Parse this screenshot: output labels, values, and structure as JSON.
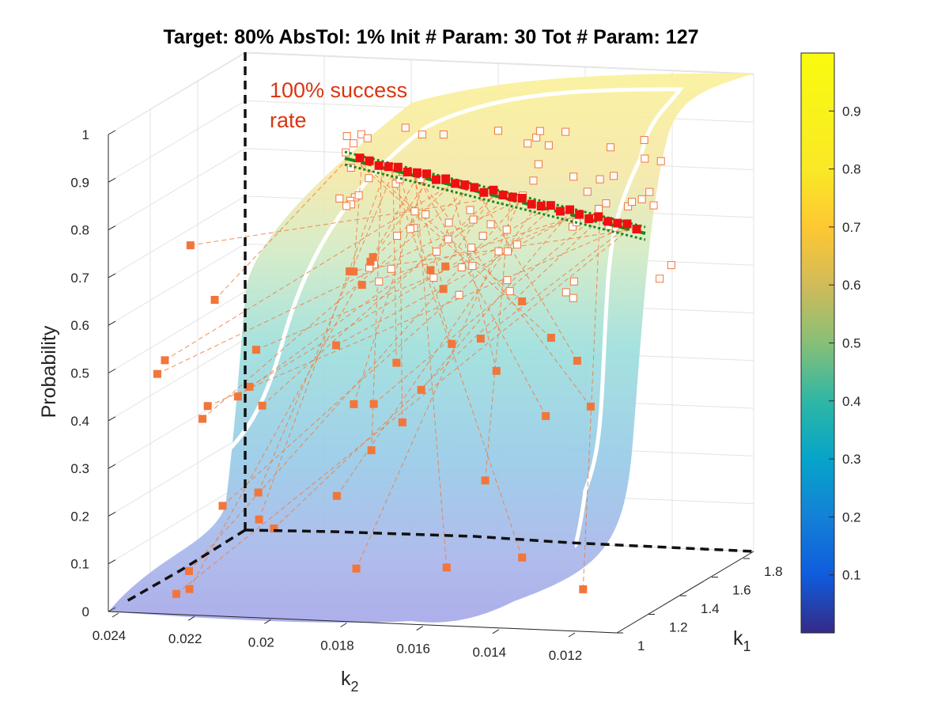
{
  "chart_data": {
    "type": "surface3d",
    "title": "Target: 80%  AbsTol: 1%  Init # Param: 30  Tot # Param: 127",
    "xlabel": "k",
    "xlabel_sub": "2",
    "ylabel": "k",
    "ylabel_sub": "1",
    "zlabel": "Probability",
    "x_ticks": [
      "0.024",
      "0.022",
      "0.02",
      "0.018",
      "0.016",
      "0.014",
      "0.012"
    ],
    "y_ticks": [
      "1",
      "1.2",
      "1.4",
      "1.6",
      "1.8"
    ],
    "z_ticks": [
      "0",
      "0.1",
      "0.2",
      "0.3",
      "0.4",
      "0.5",
      "0.6",
      "0.7",
      "0.8",
      "0.9",
      "1"
    ],
    "colorbar_ticks": [
      "0.1",
      "0.2",
      "0.3",
      "0.4",
      "0.5",
      "0.6",
      "0.7",
      "0.8",
      "0.9"
    ],
    "colorbar_range": [
      0,
      1
    ],
    "colormap": "parula",
    "annotation": [
      "100% success",
      "rate"
    ],
    "annotation_color": "#d9360f",
    "target_probability": 0.8,
    "tolerance": 0.01,
    "grid": true,
    "marker_colors": {
      "sampled": "#f2763a",
      "accepted": "#ee1010",
      "projected": "#ffffff",
      "trajectory": "#f27a3a",
      "target_band": "#1a8a1a",
      "boundary": "#111111"
    }
  }
}
